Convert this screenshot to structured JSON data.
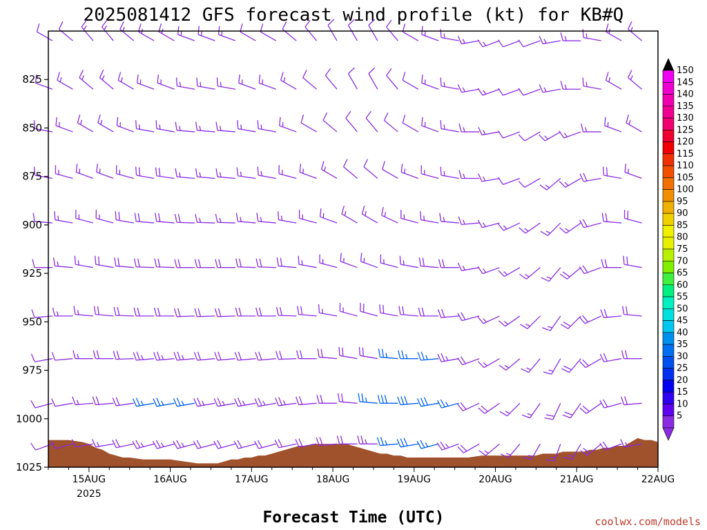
{
  "chart_data": {
    "type": "wind-barb-profile",
    "title": "2025081412 GFS forecast wind profile (kt) for KB#Q",
    "xlabel": "Forecast Time (UTC)",
    "ylabel": "",
    "credit": "coolwx.com/models",
    "x_ticks": [
      {
        "t": 12,
        "label": "15AUG",
        "sublabel": "2025"
      },
      {
        "t": 36,
        "label": "16AUG"
      },
      {
        "t": 60,
        "label": "17AUG"
      },
      {
        "t": 84,
        "label": "18AUG"
      },
      {
        "t": 108,
        "label": "19AUG"
      },
      {
        "t": 132,
        "label": "20AUG"
      },
      {
        "t": 156,
        "label": "21AUG"
      },
      {
        "t": 180,
        "label": "22AUG"
      }
    ],
    "xlim_hours": [
      0,
      180
    ],
    "y_ticks": [
      825,
      850,
      875,
      900,
      925,
      950,
      975,
      1000,
      1025
    ],
    "ylim_hPa": [
      800,
      1025
    ],
    "levels_hPa": [
      805,
      830,
      852,
      876,
      899,
      922,
      947,
      969,
      992,
      1013
    ],
    "time_hours": [
      0,
      6,
      12,
      18,
      24,
      30,
      36,
      42,
      48,
      54,
      60,
      66,
      72,
      78,
      84,
      90,
      96,
      102,
      108,
      114,
      120,
      126,
      132,
      138,
      144,
      150,
      156,
      162,
      168,
      174,
      180
    ],
    "wind_profile": [
      {
        "p": 805,
        "dir": [
          300,
          310,
          320,
          320,
          310,
          300,
          300,
          290,
          290,
          290,
          300,
          300,
          310,
          320,
          330,
          330,
          330,
          320,
          300,
          290,
          280,
          260,
          250,
          250,
          250,
          260,
          270,
          280,
          300,
          310,
          320
        ],
        "spd": [
          12,
          12,
          13,
          14,
          15,
          15,
          15,
          15,
          14,
          13,
          12,
          12,
          12,
          10,
          10,
          10,
          10,
          10,
          12,
          14,
          15,
          15,
          13,
          12,
          12,
          13,
          14,
          15,
          15,
          14,
          14
        ]
      },
      {
        "p": 830,
        "dir": [
          290,
          300,
          310,
          310,
          300,
          290,
          290,
          280,
          280,
          280,
          290,
          290,
          300,
          310,
          320,
          330,
          330,
          320,
          300,
          290,
          280,
          260,
          250,
          250,
          250,
          260,
          270,
          280,
          300,
          310,
          320
        ],
        "spd": [
          12,
          13,
          14,
          15,
          16,
          16,
          16,
          16,
          15,
          14,
          13,
          13,
          13,
          11,
          11,
          10,
          10,
          11,
          12,
          14,
          15,
          15,
          13,
          12,
          12,
          13,
          15,
          16,
          16,
          15,
          15
        ]
      },
      {
        "p": 852,
        "dir": [
          280,
          290,
          300,
          300,
          290,
          280,
          280,
          275,
          275,
          275,
          280,
          280,
          290,
          300,
          310,
          320,
          320,
          310,
          300,
          290,
          280,
          270,
          260,
          250,
          240,
          240,
          250,
          270,
          290,
          300,
          310
        ],
        "spd": [
          12,
          13,
          14,
          16,
          17,
          17,
          17,
          16,
          15,
          14,
          14,
          14,
          13,
          12,
          12,
          11,
          11,
          11,
          12,
          13,
          14,
          14,
          13,
          12,
          12,
          13,
          15,
          17,
          17,
          16,
          16
        ]
      },
      {
        "p": 876,
        "dir": [
          280,
          285,
          290,
          290,
          285,
          280,
          278,
          275,
          275,
          275,
          278,
          280,
          285,
          290,
          300,
          310,
          310,
          300,
          290,
          285,
          280,
          270,
          260,
          250,
          240,
          230,
          240,
          260,
          280,
          290,
          300
        ],
        "spd": [
          12,
          13,
          14,
          16,
          17,
          18,
          18,
          17,
          16,
          15,
          15,
          15,
          14,
          14,
          13,
          12,
          12,
          12,
          13,
          14,
          14,
          14,
          13,
          12,
          12,
          13,
          16,
          18,
          18,
          17,
          17
        ]
      },
      {
        "p": 899,
        "dir": [
          275,
          280,
          285,
          285,
          280,
          275,
          275,
          272,
          272,
          272,
          275,
          275,
          280,
          285,
          290,
          300,
          300,
          295,
          285,
          280,
          275,
          265,
          255,
          245,
          235,
          225,
          235,
          255,
          275,
          285,
          295
        ],
        "spd": [
          12,
          13,
          15,
          17,
          18,
          19,
          19,
          18,
          17,
          16,
          16,
          16,
          16,
          15,
          14,
          13,
          13,
          13,
          14,
          15,
          15,
          15,
          14,
          13,
          13,
          14,
          17,
          19,
          19,
          18,
          18
        ]
      },
      {
        "p": 922,
        "dir": [
          270,
          275,
          280,
          280,
          275,
          272,
          272,
          270,
          270,
          270,
          272,
          272,
          275,
          280,
          285,
          290,
          290,
          285,
          280,
          275,
          270,
          260,
          250,
          240,
          230,
          220,
          230,
          250,
          270,
          280,
          290
        ],
        "spd": [
          12,
          14,
          16,
          18,
          20,
          21,
          21,
          20,
          19,
          18,
          18,
          18,
          18,
          17,
          16,
          15,
          15,
          16,
          17,
          18,
          18,
          17,
          15,
          14,
          14,
          15,
          18,
          20,
          20,
          19,
          19
        ]
      },
      {
        "p": 947,
        "dir": [
          265,
          270,
          275,
          275,
          272,
          270,
          270,
          268,
          268,
          268,
          270,
          270,
          272,
          275,
          280,
          285,
          285,
          280,
          275,
          270,
          265,
          255,
          245,
          235,
          225,
          215,
          225,
          245,
          265,
          275,
          285
        ],
        "spd": [
          11,
          13,
          16,
          19,
          21,
          22,
          22,
          21,
          20,
          19,
          19,
          19,
          19,
          18,
          17,
          17,
          18,
          20,
          22,
          22,
          21,
          19,
          16,
          15,
          15,
          16,
          19,
          21,
          21,
          20,
          20
        ]
      },
      {
        "p": 969,
        "dir": [
          260,
          265,
          270,
          270,
          268,
          265,
          265,
          265,
          265,
          265,
          265,
          265,
          268,
          270,
          275,
          280,
          280,
          275,
          270,
          265,
          260,
          250,
          240,
          230,
          220,
          210,
          220,
          240,
          260,
          270,
          280
        ],
        "spd": [
          10,
          12,
          15,
          19,
          22,
          24,
          24,
          23,
          22,
          21,
          21,
          21,
          21,
          20,
          19,
          20,
          22,
          25,
          27,
          26,
          24,
          21,
          17,
          16,
          16,
          17,
          19,
          21,
          21,
          20,
          20
        ]
      },
      {
        "p": 992,
        "dir": [
          255,
          260,
          265,
          265,
          262,
          260,
          260,
          260,
          260,
          260,
          260,
          260,
          262,
          265,
          270,
          275,
          275,
          270,
          265,
          260,
          255,
          245,
          235,
          225,
          215,
          205,
          215,
          235,
          255,
          265,
          275
        ],
        "spd": [
          9,
          11,
          14,
          18,
          22,
          25,
          26,
          25,
          24,
          23,
          23,
          23,
          23,
          22,
          21,
          22,
          25,
          28,
          30,
          29,
          26,
          22,
          18,
          17,
          17,
          18,
          19,
          20,
          20,
          19,
          19
        ]
      },
      {
        "p": 1013,
        "dir": [
          250,
          255,
          260,
          260,
          258,
          255,
          255,
          255,
          255,
          255,
          255,
          255,
          258,
          260,
          265,
          270,
          270,
          265,
          260,
          255,
          250,
          240,
          230,
          220,
          210,
          200,
          210,
          230,
          250,
          260,
          270
        ],
        "spd": [
          8,
          10,
          12,
          16,
          20,
          23,
          24,
          23,
          22,
          21,
          21,
          21,
          21,
          20,
          19,
          20,
          23,
          26,
          28,
          27,
          24,
          20,
          16,
          15,
          15,
          16,
          17,
          18,
          18,
          17,
          17
        ]
      }
    ],
    "surface_pressure": {
      "x_hours": [
        0,
        6,
        10,
        12,
        14,
        16,
        18,
        20,
        22,
        24,
        28,
        32,
        36,
        40,
        44,
        48,
        50,
        52,
        54,
        56,
        58,
        60,
        62,
        64,
        66,
        68,
        70,
        72,
        74,
        76,
        78,
        80,
        82,
        84,
        86,
        88,
        90,
        92,
        94,
        96,
        98,
        100,
        102,
        104,
        106,
        108,
        112,
        116,
        120,
        124,
        128,
        132,
        136,
        140,
        144,
        146,
        148,
        150,
        152,
        154,
        156,
        158,
        160,
        162,
        164,
        166,
        168,
        170,
        172,
        174,
        176,
        178,
        180
      ],
      "p_hPa": [
        1011,
        1011,
        1012,
        1013,
        1015,
        1016,
        1018,
        1019,
        1020,
        1020,
        1021,
        1021,
        1021,
        1022,
        1023,
        1023,
        1023,
        1022,
        1021,
        1021,
        1020,
        1020,
        1019,
        1019,
        1018,
        1017,
        1016,
        1015,
        1014,
        1014,
        1013,
        1013,
        1013,
        1013,
        1013,
        1013,
        1014,
        1015,
        1016,
        1017,
        1018,
        1018,
        1019,
        1019,
        1020,
        1020,
        1020,
        1020,
        1020,
        1020,
        1019,
        1019,
        1019,
        1019,
        1019,
        1018,
        1018,
        1018,
        1017,
        1017,
        1017,
        1017,
        1016,
        1016,
        1015,
        1015,
        1014,
        1014,
        1012,
        1010,
        1011,
        1011,
        1012
      ]
    },
    "colorbar": {
      "labels": [
        "150",
        "145",
        "140",
        "135",
        "130",
        "125",
        "120",
        "115",
        "110",
        "105",
        "100",
        "95",
        "90",
        "85",
        "80",
        "75",
        "70",
        "65",
        "60",
        "55",
        "50",
        "45",
        "40",
        "35",
        "30",
        "25",
        "20",
        "15",
        "10",
        "5"
      ],
      "colors": [
        "#f000f0",
        "#f000d0",
        "#f000b0",
        "#f00090",
        "#f00070",
        "#f00030",
        "#f00000",
        "#f03000",
        "#f05000",
        "#f07000",
        "#f09000",
        "#f0b000",
        "#f0d000",
        "#f0f000",
        "#e6f000",
        "#b8f000",
        "#80f000",
        "#40f040",
        "#00f080",
        "#00f0c0",
        "#00e0e0",
        "#00c8f0",
        "#0090f0",
        "#0070f0",
        "#0050f0",
        "#0030f0",
        "#0000f0",
        "#3000f0",
        "#6000f0",
        "#8a2be2"
      ],
      "top_color": "#000000",
      "bottom_color": "#8a2be2"
    },
    "colors": {
      "terrain": "#a0522d",
      "barb_light": "#8a2be2",
      "barb_strong": "#0060f0"
    },
    "grid": false
  }
}
